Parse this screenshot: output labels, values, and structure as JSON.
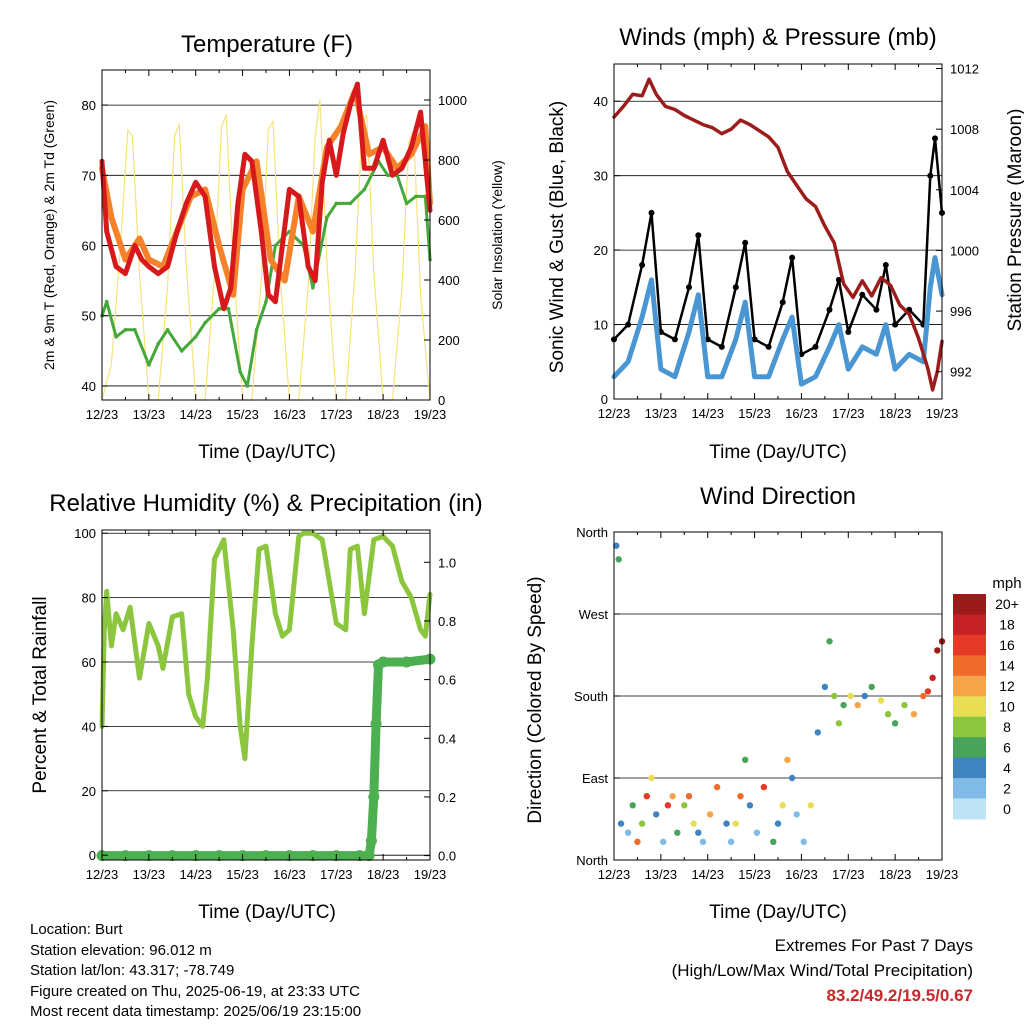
{
  "colors": {
    "temp_2m": "#d7191c",
    "temp_9m": "#f5822a",
    "dewpoint": "#44a83a",
    "solar": "#f7e27a",
    "wind": "#4a96d2",
    "gust": "#000000",
    "pressure": "#9c1c1c",
    "rh": "#8cc63f",
    "precip": "#4caf50"
  },
  "footer": {
    "location": "Location: Burt",
    "elevation": "Station elevation: 96.012 m",
    "latlon": "Station lat/lon: 43.317; -78.749",
    "created": "Figure created on Thu, 2025-06-19, at 23:33 UTC",
    "recent": "Most recent data timestamp: 2025/06/19 23:15:00",
    "extremes_title": "Extremes For Past 7 Days",
    "extremes_subtitle": "(High/Low/Max Wind/Total Precipitation)",
    "extremes_values": "83.2/49.2/19.5/0.67"
  },
  "chart_data": [
    {
      "type": "line",
      "title": "Temperature (F)",
      "xlabel": "Time (Day/UTC)",
      "ylabel": "2m & 9m T (Red, Orange) & 2m Td (Green)",
      "ylabel_right": "Solar Insolation (Yellow)",
      "x_ticks": [
        "12/23",
        "13/23",
        "14/23",
        "15/23",
        "16/23",
        "17/23",
        "18/23",
        "19/23"
      ],
      "ylim": [
        38,
        85
      ],
      "yticks": [
        40,
        50,
        60,
        70,
        80
      ],
      "ylim_right": [
        0,
        1100
      ],
      "yticks_right": [
        0,
        200,
        400,
        600,
        800,
        1000
      ],
      "grid": true,
      "series": [
        {
          "name": "2m T",
          "x": [
            0,
            0.1,
            0.3,
            0.5,
            0.7,
            0.85,
            1,
            1.2,
            1.4,
            1.6,
            1.8,
            2,
            2.2,
            2.4,
            2.6,
            2.75,
            2.9,
            3.05,
            3.2,
            3.4,
            3.55,
            3.7,
            3.85,
            4,
            4.2,
            4.4,
            4.55,
            4.7,
            4.85,
            5,
            5.15,
            5.3,
            5.45,
            5.6,
            5.8,
            6,
            6.2,
            6.4,
            6.6,
            6.8,
            6.9,
            7
          ],
          "values": [
            72,
            62,
            57,
            56,
            60,
            58,
            57,
            56,
            57,
            62,
            66,
            69,
            67,
            57,
            51,
            54,
            66,
            73,
            72,
            62,
            53,
            52,
            60,
            68,
            67,
            57,
            55,
            69,
            75,
            70,
            76,
            80,
            83,
            71,
            71,
            75,
            70,
            71,
            74,
            79,
            72,
            65
          ]
        },
        {
          "name": "9m T",
          "x": [
            0,
            0.2,
            0.5,
            0.8,
            1,
            1.3,
            1.6,
            1.9,
            2.2,
            2.5,
            2.8,
            3,
            3.3,
            3.6,
            3.9,
            4.2,
            4.5,
            4.8,
            5.1,
            5.4,
            5.7,
            6,
            6.3,
            6.6,
            6.9,
            7
          ],
          "values": [
            71,
            64,
            58,
            61,
            58,
            57,
            62,
            67,
            68,
            60,
            53,
            68,
            72,
            58,
            55,
            67,
            62,
            74,
            77,
            82,
            73,
            74,
            71,
            73,
            77,
            66
          ]
        },
        {
          "name": "2m Td",
          "x": [
            0,
            0.1,
            0.3,
            0.5,
            0.7,
            1,
            1.2,
            1.4,
            1.7,
            2,
            2.2,
            2.5,
            2.7,
            2.95,
            3.1,
            3.3,
            3.5,
            3.7,
            4,
            4.3,
            4.5,
            4.8,
            5,
            5.3,
            5.6,
            5.9,
            6.1,
            6.3,
            6.5,
            6.7,
            6.9,
            7
          ],
          "values": [
            50,
            52,
            47,
            48,
            48,
            43,
            46,
            48,
            45,
            47,
            49,
            51,
            51,
            42,
            40,
            48,
            52,
            60,
            62,
            60,
            54,
            64,
            66,
            66,
            68,
            72,
            70,
            70,
            66,
            67,
            67,
            58
          ]
        },
        {
          "name": "Solar",
          "x": [
            0,
            0.2,
            0.4,
            0.55,
            0.65,
            0.8,
            1,
            1.2,
            1.4,
            1.55,
            1.65,
            1.8,
            2,
            2.2,
            2.4,
            2.55,
            2.65,
            2.8,
            3,
            3.2,
            3.4,
            3.55,
            3.65,
            3.8,
            4,
            4.2,
            4.4,
            4.55,
            4.65,
            4.8,
            5,
            5.2,
            5.4,
            5.55,
            5.65,
            5.8,
            6,
            6.2,
            6.4,
            6.55,
            6.65,
            6.8,
            7
          ],
          "values": [
            0,
            120,
            520,
            900,
            880,
            420,
            0,
            0,
            380,
            880,
            920,
            450,
            0,
            0,
            420,
            910,
            950,
            460,
            0,
            0,
            400,
            900,
            930,
            420,
            0,
            0,
            380,
            880,
            1000,
            460,
            0,
            0,
            420,
            920,
            950,
            430,
            0,
            0,
            370,
            860,
            900,
            350,
            0
          ]
        }
      ]
    },
    {
      "type": "scatter",
      "title": "Winds (mph) & Pressure (mb)",
      "xlabel": "Time (Day/UTC)",
      "ylabel": "Sonic Wind & Gust (Blue, Black)",
      "ylabel_right": "Station Pressure (Maroon)",
      "x_ticks": [
        "12/23",
        "13/23",
        "14/23",
        "15/23",
        "16/23",
        "17/23",
        "18/23",
        "19/23"
      ],
      "ylim": [
        0,
        45
      ],
      "yticks": [
        0,
        10,
        20,
        30,
        40
      ],
      "ylim_right": [
        990.2,
        1012.3
      ],
      "yticks_right": [
        992,
        996,
        1000,
        1004,
        1008,
        1012
      ],
      "grid": true,
      "series": [
        {
          "name": "Gust",
          "x": [
            0,
            0.3,
            0.6,
            0.8,
            1,
            1.3,
            1.6,
            1.8,
            2,
            2.3,
            2.6,
            2.8,
            3,
            3.3,
            3.6,
            3.8,
            4,
            4.3,
            4.6,
            4.8,
            5,
            5.3,
            5.6,
            5.8,
            6,
            6.3,
            6.6,
            6.75,
            6.85,
            7
          ],
          "values": [
            8,
            10,
            18,
            25,
            9,
            8,
            15,
            22,
            8,
            7,
            15,
            21,
            8,
            7,
            13,
            19,
            6,
            7,
            12,
            16,
            9,
            14,
            12,
            18,
            10,
            12,
            10,
            30,
            35,
            25
          ]
        },
        {
          "name": "Wind",
          "x": [
            0,
            0.3,
            0.6,
            0.8,
            1,
            1.3,
            1.6,
            1.8,
            2,
            2.3,
            2.6,
            2.8,
            3,
            3.3,
            3.6,
            3.8,
            4,
            4.3,
            4.6,
            4.8,
            5,
            5.3,
            5.6,
            5.8,
            6,
            6.3,
            6.6,
            6.75,
            6.85,
            7
          ],
          "values": [
            3,
            5,
            11,
            16,
            4,
            3,
            9,
            14,
            3,
            3,
            8,
            13,
            3,
            3,
            8,
            11,
            2,
            3,
            7,
            10,
            4,
            7,
            6,
            10,
            4,
            6,
            5,
            15,
            19,
            14
          ]
        },
        {
          "name": "Pressure",
          "x": [
            0,
            0.2,
            0.4,
            0.6,
            0.75,
            0.9,
            1.1,
            1.3,
            1.5,
            1.7,
            1.9,
            2.1,
            2.3,
            2.5,
            2.7,
            2.9,
            3.1,
            3.3,
            3.5,
            3.7,
            3.9,
            4.1,
            4.3,
            4.5,
            4.7,
            4.9,
            5.1,
            5.3,
            5.5,
            5.7,
            5.9,
            6.1,
            6.3,
            6.5,
            6.7,
            6.8,
            6.9,
            7
          ],
          "values": [
            1008.8,
            1009.5,
            1010.3,
            1010.2,
            1011.3,
            1010.3,
            1009.5,
            1009.3,
            1008.9,
            1008.6,
            1008.3,
            1008.1,
            1007.7,
            1008.0,
            1008.6,
            1008.3,
            1007.9,
            1007.5,
            1006.8,
            1005.2,
            1004.3,
            1003.4,
            1002.9,
            1001.6,
            1000.5,
            997.8,
            996.9,
            998.0,
            997.0,
            998.2,
            997.7,
            996.4,
            995.8,
            994.2,
            992.2,
            990.8,
            992.0,
            994.0
          ]
        }
      ]
    },
    {
      "type": "line",
      "title": "Relative Humidity (%) & Precipitation (in)",
      "xlabel": "Time (Day/UTC)",
      "ylabel": "Percent & Total Rainfall",
      "x_ticks": [
        "12/23",
        "13/23",
        "14/23",
        "15/23",
        "16/23",
        "17/23",
        "18/23",
        "19/23"
      ],
      "ylim": [
        -1.5,
        101
      ],
      "yticks": [
        0,
        20,
        40,
        60,
        80,
        100
      ],
      "ylim_right": [
        -0.015,
        1.11
      ],
      "yticks_right": [
        0.0,
        0.2,
        0.4,
        0.6,
        0.8,
        1.0
      ],
      "grid": true,
      "series": [
        {
          "name": "RH",
          "x": [
            0,
            0.05,
            0.1,
            0.2,
            0.3,
            0.45,
            0.6,
            0.8,
            1,
            1.2,
            1.3,
            1.5,
            1.7,
            1.85,
            2,
            2.15,
            2.25,
            2.4,
            2.6,
            2.8,
            2.95,
            3.05,
            3.2,
            3.35,
            3.5,
            3.7,
            3.85,
            4,
            4.2,
            4.3,
            4.5,
            4.7,
            4.85,
            5,
            5.2,
            5.3,
            5.45,
            5.6,
            5.8,
            6,
            6.2,
            6.4,
            6.6,
            6.8,
            6.9,
            7
          ],
          "values": [
            40,
            70,
            82,
            65,
            75,
            70,
            77,
            55,
            72,
            65,
            58,
            74,
            75,
            50,
            43,
            40,
            55,
            92,
            98,
            70,
            40,
            30,
            65,
            95,
            96,
            75,
            68,
            70,
            99,
            100,
            100,
            98,
            85,
            72,
            70,
            95,
            96,
            75,
            98,
            99,
            96,
            85,
            80,
            70,
            68,
            81
          ]
        },
        {
          "name": "Precipitation",
          "x": [
            0,
            0.5,
            1,
            1.5,
            2,
            2.5,
            3,
            3.5,
            4,
            4.5,
            5,
            5.5,
            5.7,
            5.75,
            5.8,
            5.85,
            5.9,
            6,
            6.5,
            7
          ],
          "values": [
            0,
            0,
            0,
            0,
            0,
            0,
            0,
            0,
            0,
            0,
            0,
            0,
            0,
            0.05,
            0.2,
            0.45,
            0.65,
            0.66,
            0.66,
            0.67
          ]
        }
      ]
    },
    {
      "type": "scatter",
      "title": "Wind Direction",
      "xlabel": "Time (Day/UTC)",
      "ylabel": "Direction (Colored By Speed)",
      "x_ticks": [
        "12/23",
        "13/23",
        "14/23",
        "15/23",
        "16/23",
        "17/23",
        "18/23",
        "19/23"
      ],
      "y_ticks": [
        "North",
        "East",
        "South",
        "West",
        "North"
      ],
      "ylim": [
        0,
        360
      ],
      "colorbar_title": "mph",
      "colorbar_labels": [
        "20+",
        "18",
        "16",
        "14",
        "12",
        "10",
        "8",
        "6",
        "4",
        "2",
        "0"
      ],
      "colorbar_colors": [
        "#9b1b1b",
        "#c62127",
        "#e43a27",
        "#f06c2c",
        "#f7a54a",
        "#e9de53",
        "#8cc63f",
        "#4aa35a",
        "#3f83c0",
        "#7fbbe6",
        "#bfe3f6"
      ],
      "x": [
        0.05,
        0.1,
        0.15,
        0.3,
        0.4,
        0.5,
        0.6,
        0.7,
        0.8,
        0.9,
        1.05,
        1.15,
        1.25,
        1.35,
        1.5,
        1.6,
        1.7,
        1.8,
        1.9,
        2.05,
        2.2,
        2.4,
        2.5,
        2.6,
        2.7,
        2.8,
        2.9,
        3.05,
        3.2,
        3.4,
        3.5,
        3.6,
        3.7,
        3.8,
        3.9,
        4.05,
        4.2,
        4.35,
        4.5,
        4.6,
        4.7,
        4.8,
        4.9,
        5.05,
        5.2,
        5.35,
        5.5,
        5.7,
        5.85,
        6.0,
        6.2,
        6.4,
        6.6,
        6.7,
        6.8,
        6.9,
        7.0
      ],
      "values": [
        345,
        330,
        40,
        30,
        60,
        20,
        40,
        70,
        90,
        50,
        20,
        60,
        70,
        30,
        60,
        70,
        40,
        30,
        20,
        50,
        80,
        40,
        20,
        40,
        70,
        110,
        60,
        30,
        80,
        20,
        40,
        60,
        110,
        90,
        50,
        20,
        60,
        140,
        190,
        240,
        180,
        150,
        170,
        180,
        170,
        180,
        190,
        175,
        160,
        150,
        170,
        160,
        180,
        185,
        200,
        230,
        240
      ],
      "speeds": [
        4,
        6,
        3,
        2,
        5,
        13,
        8,
        15,
        10,
        4,
        2,
        16,
        12,
        6,
        8,
        14,
        10,
        3,
        2,
        12,
        14,
        4,
        2,
        9,
        13,
        5,
        3,
        2,
        15,
        5,
        3,
        9,
        11,
        4,
        2,
        2,
        10,
        3,
        4,
        6,
        8,
        7,
        6,
        9,
        11,
        4,
        6,
        10,
        8,
        5,
        7,
        11,
        13,
        15,
        17,
        19,
        20
      ]
    }
  ]
}
